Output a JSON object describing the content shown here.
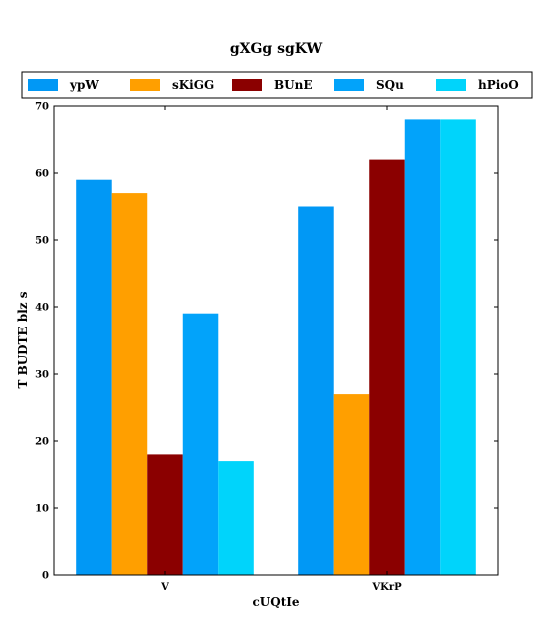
{
  "chart_data": {
    "type": "bar",
    "title": "gXGg sgKW",
    "xlabel": "cUQtIe",
    "ylabel": "T BUDTE blz s",
    "categories": [
      "V",
      "VKrP"
    ],
    "ylim": [
      0,
      70
    ],
    "yticks": [
      0,
      10,
      20,
      30,
      40,
      50,
      60,
      70
    ],
    "grid": false,
    "legend_position": "top",
    "series": [
      {
        "name": "ypW",
        "color": "#0198f5",
        "values": [
          59,
          55
        ]
      },
      {
        "name": "sKiGG",
        "color": "#ff9f00",
        "values": [
          57,
          27
        ]
      },
      {
        "name": "BUnE",
        "color": "#8b0000",
        "values": [
          18,
          62
        ]
      },
      {
        "name": "SQu",
        "color": "#02a3fa",
        "values": [
          39,
          68
        ]
      },
      {
        "name": "hPioO",
        "color": "#00d4fb",
        "values": [
          17,
          68
        ]
      }
    ]
  }
}
